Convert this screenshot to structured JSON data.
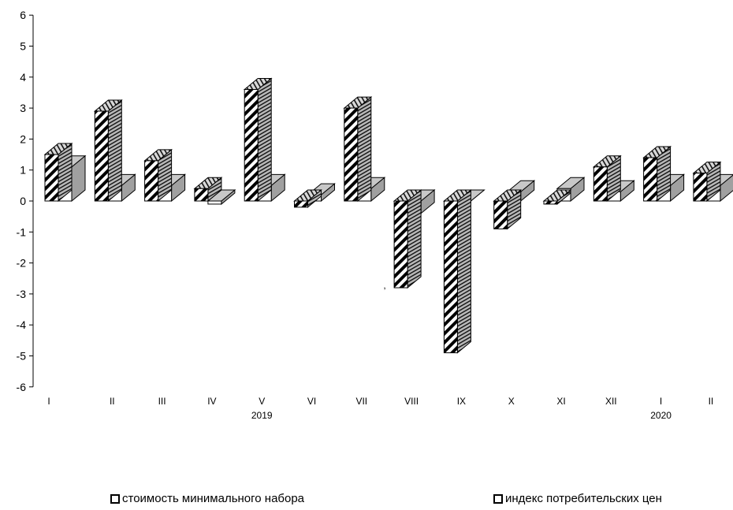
{
  "chart_data": {
    "type": "bar",
    "title": "",
    "xlabel": "",
    "ylabel": "",
    "ylim": [
      -6,
      6
    ],
    "yticks": [
      -6,
      -5,
      -4,
      -3,
      -2,
      -1,
      0,
      1,
      2,
      3,
      4,
      5,
      6
    ],
    "categories": [
      "I",
      "II",
      "III",
      "IV",
      "V",
      "VI",
      "VII",
      "VIII",
      "IX",
      "X",
      "XI",
      "XII",
      "I",
      "II"
    ],
    "year_labels": [
      {
        "label": "2019",
        "category_index": 4
      },
      {
        "label": "2020",
        "category_index": 12
      }
    ],
    "series": [
      {
        "name": "стоимость минимального набора",
        "values": [
          1.5,
          2.9,
          1.3,
          0.4,
          3.6,
          -0.2,
          3.0,
          -2.8,
          -4.9,
          -0.9,
          -0.1,
          1.1,
          1.4,
          0.9
        ],
        "pattern": "diagonal-hatch"
      },
      {
        "name": "индекс потребительских цен",
        "values": [
          1.1,
          0.5,
          0.5,
          -0.1,
          0.5,
          0.2,
          0.4,
          -0.4,
          0.0,
          0.3,
          0.4,
          0.3,
          0.5,
          0.5
        ],
        "pattern": "white"
      }
    ],
    "grid": false,
    "legend_position": "bottom",
    "stray_mark": ","
  }
}
